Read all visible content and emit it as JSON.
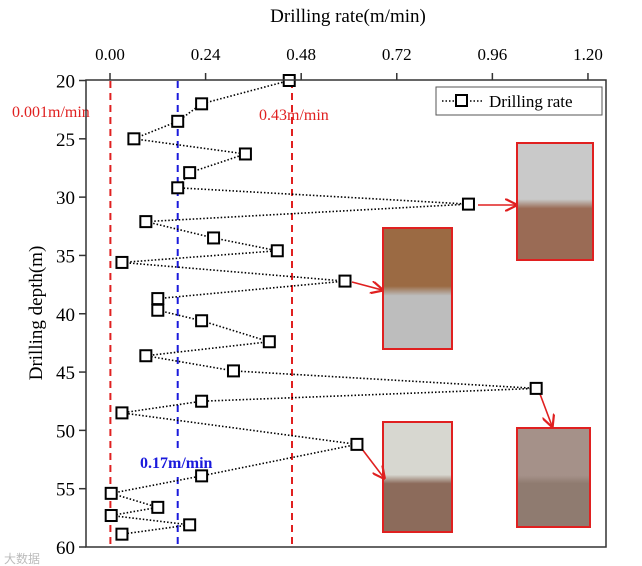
{
  "chart_data": {
    "type": "scatter",
    "title": "",
    "xlabel": "Drilling rate(m/min)",
    "ylabel": "Drilling depth(m)",
    "xlim": [
      0,
      1.2
    ],
    "ylim": [
      20,
      60
    ],
    "x_axis_position": "top",
    "y_axis_inverted": true,
    "xticks": [
      "0.00",
      "0.24",
      "0.48",
      "0.72",
      "0.96",
      "1.20"
    ],
    "xtick_values": [
      0,
      0.24,
      0.48,
      0.72,
      0.96,
      1.2
    ],
    "yticks": [
      "20",
      "25",
      "30",
      "35",
      "40",
      "45",
      "50",
      "55",
      "60"
    ],
    "ytick_values": [
      20,
      25,
      30,
      35,
      40,
      45,
      50,
      55,
      60
    ],
    "grid": false,
    "legend": {
      "placement": "top-right",
      "entries": [
        "Drilling rate"
      ]
    },
    "series": [
      {
        "name": "Drilling rate",
        "marker": "open-square",
        "line": "dotted",
        "color": "#000000",
        "points": [
          [
            0.45,
            20.0
          ],
          [
            0.23,
            22.0
          ],
          [
            0.17,
            23.5
          ],
          [
            0.06,
            25.0
          ],
          [
            0.34,
            26.3
          ],
          [
            0.2,
            27.9
          ],
          [
            0.17,
            29.2
          ],
          [
            0.9,
            30.6
          ],
          [
            0.09,
            32.1
          ],
          [
            0.26,
            33.5
          ],
          [
            0.42,
            34.6
          ],
          [
            0.03,
            35.6
          ],
          [
            0.59,
            37.2
          ],
          [
            0.12,
            38.7
          ],
          [
            0.12,
            39.7
          ],
          [
            0.23,
            40.6
          ],
          [
            0.4,
            42.4
          ],
          [
            0.09,
            43.6
          ],
          [
            0.31,
            44.9
          ],
          [
            1.07,
            46.4
          ],
          [
            0.23,
            47.5
          ],
          [
            0.03,
            48.5
          ],
          [
            0.62,
            51.2
          ],
          [
            0.23,
            53.9
          ],
          [
            0.003,
            55.4
          ],
          [
            0.12,
            56.6
          ],
          [
            0.003,
            57.3
          ],
          [
            0.2,
            58.1
          ],
          [
            0.03,
            58.9
          ]
        ]
      }
    ],
    "reference_lines": [
      {
        "value": 0.001,
        "label": "0.001m/min",
        "color": "#e02020",
        "style": "dashed"
      },
      {
        "value": 0.17,
        "label": "0.17m/min",
        "color": "#1a1adc",
        "style": "dashed"
      },
      {
        "value": 0.43,
        "label": "0.43m/min",
        "color": "#e02020",
        "style": "dashed"
      }
    ],
    "photo_insets": [
      {
        "points_to_depth": 30.6,
        "colors": [
          "#c9c9c9",
          "#9a6b55"
        ]
      },
      {
        "points_to_depth": 37.2,
        "colors": [
          "#9b6a43",
          "#bdbdbd"
        ]
      },
      {
        "points_to_depth": 51.2,
        "colors": [
          "#d7d7d0",
          "#8c6b5b"
        ]
      },
      {
        "points_to_depth": 46.4,
        "colors": [
          "#a59189",
          "#8f7b70"
        ]
      }
    ]
  },
  "watermark": "大数据"
}
